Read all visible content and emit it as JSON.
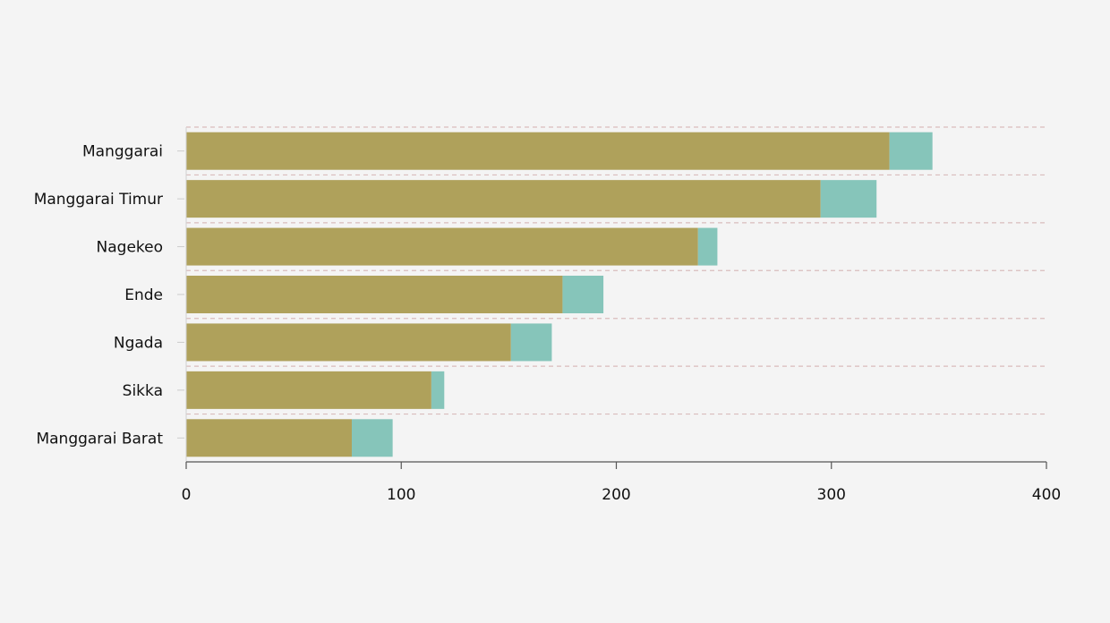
{
  "chart_data": {
    "type": "bar",
    "orientation": "horizontal",
    "stacked": true,
    "categories": [
      "Manggarai",
      "Manggarai Timur",
      "Nagekeo",
      "Ende",
      "Ngada",
      "Sikka",
      "Manggarai Barat"
    ],
    "series": [
      {
        "values": [
          327,
          295,
          238,
          175,
          151,
          114,
          77
        ],
        "color": "#afa15b"
      },
      {
        "values": [
          20,
          26,
          9,
          19,
          19,
          6,
          19
        ],
        "color": "#86c5ba"
      }
    ],
    "xlim": [
      0,
      400
    ],
    "xticks": [
      0,
      100,
      200,
      300,
      400
    ],
    "tick_labels": [
      "0",
      "100",
      "200",
      "300",
      "400"
    ],
    "title": "",
    "xlabel": "",
    "ylabel": "",
    "grid": "horizontal dashed separators",
    "legend": "none",
    "colors": {
      "background": "#f4f4f4",
      "grid": "#d9bcbc",
      "axis": "#555555",
      "text": "#111111"
    }
  }
}
